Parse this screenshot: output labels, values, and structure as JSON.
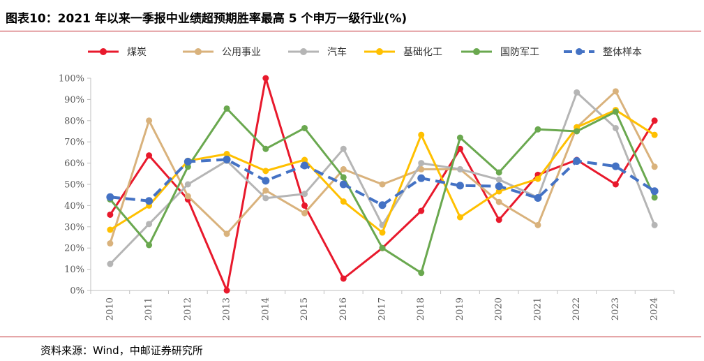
{
  "title": "图表10：2021 年以来一季报中业绩超预期胜率最高 5 个申万一级行业(%)",
  "source": "资料来源：Wind，中邮证券研究所",
  "chart_data": {
    "type": "line",
    "categories": [
      "2010",
      "2011",
      "2012",
      "2013",
      "2014",
      "2015",
      "2016",
      "2017",
      "2018",
      "2019",
      "2020",
      "2021",
      "2022",
      "2023",
      "2024"
    ],
    "ylim": [
      0,
      100
    ],
    "yticks": [
      0,
      10,
      20,
      30,
      40,
      50,
      60,
      70,
      80,
      90,
      100
    ],
    "ytick_labels": [
      "0%",
      "10%",
      "20%",
      "30%",
      "40%",
      "50%",
      "60%",
      "70%",
      "80%",
      "90%",
      "100%"
    ],
    "xlabel": "",
    "ylabel": "",
    "grid": "none",
    "legend_position": "top",
    "series": [
      {
        "name": "煤炭",
        "color": "#e8192c",
        "dashed": false,
        "values": [
          35.7,
          63.6,
          42.9,
          0,
          100,
          40,
          5.6,
          20,
          37.5,
          66.7,
          33.3,
          54.5,
          61.5,
          50,
          80
        ]
      },
      {
        "name": "公用事业",
        "color": "#d9b27c",
        "dashed": false,
        "values": [
          22.2,
          80,
          44.4,
          26.7,
          47.1,
          36.4,
          57.1,
          50,
          57.1,
          57.1,
          41.7,
          30.8,
          76.9,
          93.8,
          58.3
        ]
      },
      {
        "name": "汽车",
        "color": "#b5b5b5",
        "dashed": false,
        "values": [
          12.5,
          31.3,
          50,
          61.1,
          43.5,
          45.5,
          66.7,
          30.8,
          60,
          57.1,
          52.2,
          43.8,
          93.3,
          76.5,
          30.8
        ]
      },
      {
        "name": "基础化工",
        "color": "#ffc000",
        "dashed": false,
        "values": [
          28.6,
          40,
          61.1,
          64.3,
          56.3,
          61.5,
          41.9,
          27.3,
          73.3,
          34.5,
          46.7,
          52.6,
          76.9,
          85,
          73.3
        ]
      },
      {
        "name": "国防军工",
        "color": "#6aa84f",
        "dashed": false,
        "values": [
          42.9,
          21.4,
          58.3,
          85.7,
          66.7,
          76.5,
          53.3,
          20,
          8.3,
          72,
          55.6,
          75.9,
          75,
          84.2,
          43.8
        ]
      },
      {
        "name": "整体样本",
        "color": "#4472c4",
        "dashed": true,
        "values": [
          44,
          42.2,
          60.7,
          61.7,
          51.7,
          58.9,
          50,
          40.2,
          52.9,
          49.4,
          49.1,
          43.6,
          61,
          58.5,
          46.8
        ]
      }
    ]
  }
}
